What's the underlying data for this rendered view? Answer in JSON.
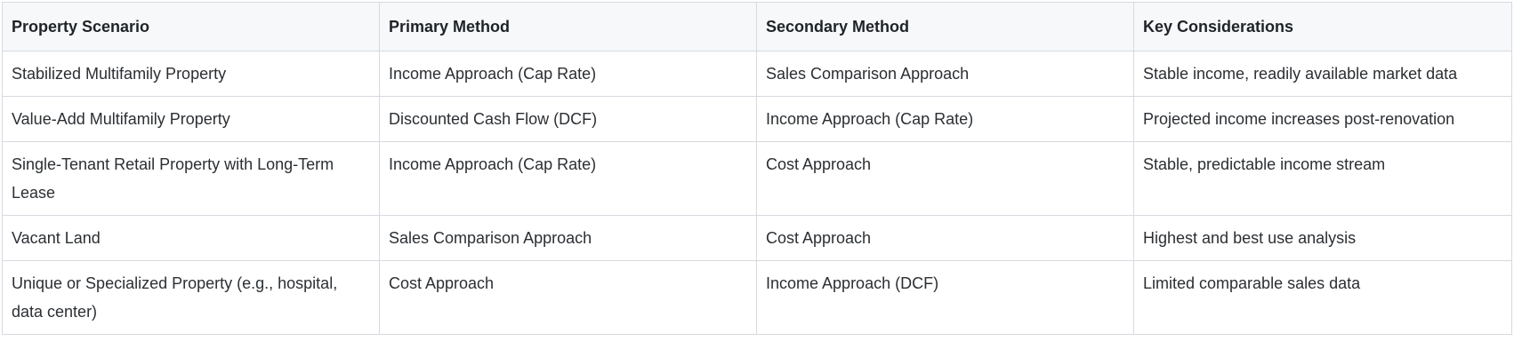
{
  "table": {
    "headers": [
      "Property Scenario",
      "Primary Method",
      "Secondary Method",
      "Key Considerations"
    ],
    "rows": [
      [
        "Stabilized Multifamily Property",
        "Income Approach (Cap Rate)",
        "Sales Comparison Approach",
        "Stable income, readily available market data"
      ],
      [
        "Value-Add Multifamily Property",
        "Discounted Cash Flow (DCF)",
        "Income Approach (Cap Rate)",
        "Projected income increases post-renovation"
      ],
      [
        "Single-Tenant Retail Property with Long-Term Lease",
        "Income Approach (Cap Rate)",
        "Cost Approach",
        "Stable, predictable income stream"
      ],
      [
        "Vacant Land",
        "Sales Comparison Approach",
        "Cost Approach",
        "Highest and best use analysis"
      ],
      [
        "Unique or Specialized Property (e.g., hospital, data center)",
        "Cost Approach",
        "Income Approach (DCF)",
        "Limited comparable sales data"
      ]
    ]
  }
}
